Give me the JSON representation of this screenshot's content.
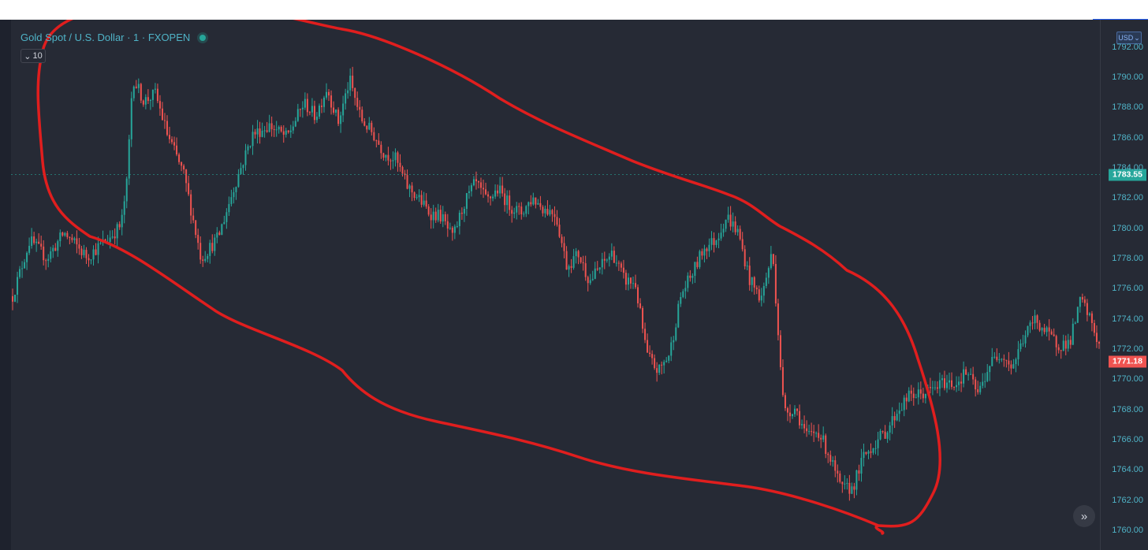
{
  "legend": {
    "symbol": "Gold Spot / U.S. Dollar · 1 · FXOPEN",
    "collapse_value": "10"
  },
  "price_scale": {
    "currency": "USD",
    "ticks": [
      "1792.00",
      "1790.00",
      "1788.00",
      "1786.00",
      "1784.00",
      "1782.00",
      "1780.00",
      "1778.00",
      "1776.00",
      "1774.00",
      "1772.00",
      "1770.00",
      "1768.00",
      "1766.00",
      "1764.00",
      "1762.00",
      "1760.00"
    ],
    "ref_price_label": "1783.55",
    "last_price_label": "1771.18"
  },
  "colors": {
    "background": "#262a35",
    "up_candle": "#26a69a",
    "down_candle": "#ef5350",
    "annotation": "#e01e1e",
    "ref_line": "#26a69a",
    "last_price_tag": "#ef5350"
  },
  "icons": {
    "collapse": "chevron-down-icon",
    "scroll": "double-chevron-right-icon",
    "live": "live-status-dot"
  },
  "chart_data": {
    "type": "candlestick",
    "ylim": [
      1760,
      1792
    ],
    "ref_price": 1783.55,
    "last_price": 1771.18,
    "price_path": [
      [
        0,
        1775.5
      ],
      [
        3,
        1779.2
      ],
      [
        6,
        1778.0
      ],
      [
        9,
        1779.7
      ],
      [
        13,
        1778.1
      ],
      [
        17,
        1779.4
      ],
      [
        19,
        1780.2
      ],
      [
        20,
        1783.0
      ],
      [
        21,
        1790.0
      ],
      [
        23,
        1788.4
      ],
      [
        25,
        1788.9
      ],
      [
        27,
        1786.3
      ],
      [
        30,
        1783.5
      ],
      [
        33,
        1778.0
      ],
      [
        36,
        1779.4
      ],
      [
        39,
        1783.0
      ],
      [
        42,
        1786.2
      ],
      [
        45,
        1786.8
      ],
      [
        48,
        1786.0
      ],
      [
        51,
        1788.3
      ],
      [
        53,
        1787.4
      ],
      [
        55,
        1789.3
      ],
      [
        57,
        1787.0
      ],
      [
        59,
        1789.8
      ],
      [
        61,
        1787.2
      ],
      [
        63,
        1786.3
      ],
      [
        65,
        1785.0
      ],
      [
        67,
        1784.6
      ],
      [
        69,
        1782.8
      ],
      [
        71,
        1782.0
      ],
      [
        73,
        1781.0
      ],
      [
        75,
        1780.8
      ],
      [
        77,
        1779.3
      ],
      [
        79,
        1781.6
      ],
      [
        81,
        1783.0
      ],
      [
        83,
        1781.8
      ],
      [
        85,
        1782.6
      ],
      [
        87,
        1781.5
      ],
      [
        89,
        1781.0
      ],
      [
        91,
        1782.0
      ],
      [
        93,
        1781.3
      ],
      [
        95,
        1781.0
      ],
      [
        97,
        1777.5
      ],
      [
        99,
        1778.3
      ],
      [
        101,
        1776.5
      ],
      [
        103,
        1777.5
      ],
      [
        105,
        1778.4
      ],
      [
        107,
        1776.6
      ],
      [
        109,
        1776.3
      ],
      [
        111,
        1771.6
      ],
      [
        113,
        1770.5
      ],
      [
        115,
        1771.7
      ],
      [
        117,
        1775.6
      ],
      [
        119,
        1777.0
      ],
      [
        121,
        1778.7
      ],
      [
        123,
        1779.2
      ],
      [
        125,
        1780.8
      ],
      [
        127,
        1779.7
      ],
      [
        129,
        1776.6
      ],
      [
        131,
        1775.3
      ],
      [
        133,
        1778.5
      ],
      [
        135,
        1767.8
      ],
      [
        137,
        1768.1
      ],
      [
        139,
        1766.2
      ],
      [
        141,
        1766.6
      ],
      [
        143,
        1764.9
      ],
      [
        145,
        1762.7
      ],
      [
        147,
        1762.8
      ],
      [
        149,
        1764.9
      ],
      [
        151,
        1765.8
      ],
      [
        153,
        1766.6
      ],
      [
        155,
        1768.0
      ],
      [
        157,
        1768.9
      ],
      [
        159,
        1769.0
      ],
      [
        161,
        1769.3
      ],
      [
        163,
        1769.8
      ],
      [
        165,
        1769.7
      ],
      [
        167,
        1770.5
      ],
      [
        169,
        1769.0
      ],
      [
        171,
        1771.0
      ],
      [
        173,
        1771.8
      ],
      [
        175,
        1770.8
      ],
      [
        177,
        1772.8
      ],
      [
        179,
        1774.0
      ],
      [
        181,
        1773.0
      ],
      [
        183,
        1772.3
      ],
      [
        185,
        1772.4
      ],
      [
        187,
        1775.3
      ],
      [
        189,
        1773.6
      ],
      [
        191,
        1771.2
      ]
    ]
  }
}
